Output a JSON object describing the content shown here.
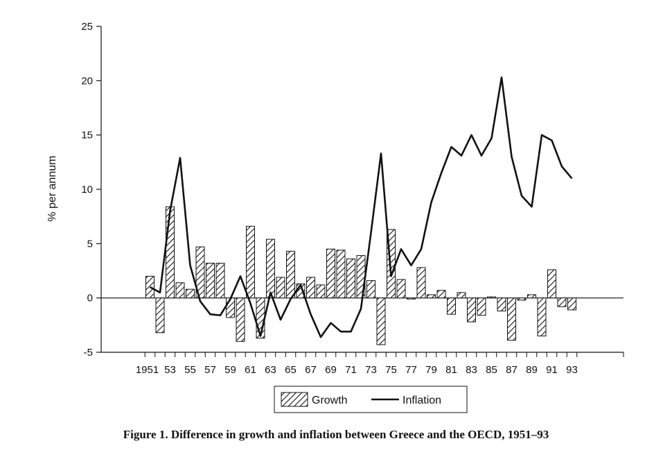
{
  "caption": "Figure 1. Difference in growth and inflation between Greece and the OECD, 1951–93",
  "chart_data": {
    "type": "bar+line",
    "ylabel": "% per annum",
    "ylim": [
      -5,
      25
    ],
    "yticks": [
      -5,
      0,
      5,
      10,
      15,
      20,
      25
    ],
    "x": [
      1951,
      1952,
      1953,
      1954,
      1955,
      1956,
      1957,
      1958,
      1959,
      1960,
      1961,
      1962,
      1963,
      1964,
      1965,
      1966,
      1967,
      1968,
      1969,
      1970,
      1971,
      1972,
      1973,
      1974,
      1975,
      1976,
      1977,
      1978,
      1979,
      1980,
      1981,
      1982,
      1983,
      1984,
      1985,
      1986,
      1987,
      1988,
      1989,
      1990,
      1991,
      1992,
      1993
    ],
    "xticklabels": [
      "1951",
      "53",
      "55",
      "57",
      "59",
      "61",
      "63",
      "65",
      "67",
      "69",
      "71",
      "73",
      "75",
      "77",
      "79",
      "81",
      "83",
      "85",
      "87",
      "89",
      "91",
      "93"
    ],
    "series": [
      {
        "name": "Growth",
        "kind": "bar",
        "pattern": "hatched",
        "values": [
          2.0,
          -3.2,
          8.4,
          1.4,
          0.8,
          4.7,
          3.2,
          3.2,
          -1.8,
          -4.0,
          6.6,
          -3.7,
          5.4,
          1.9,
          4.3,
          1.3,
          1.9,
          1.2,
          4.5,
          4.4,
          3.6,
          3.9,
          1.6,
          -4.3,
          6.3,
          1.7,
          -0.1,
          2.8,
          0.3,
          0.7,
          -1.5,
          0.5,
          -2.2,
          -1.6,
          0.1,
          -1.2,
          -3.9,
          -0.2,
          0.3,
          -3.5,
          2.6,
          -0.8,
          -1.1
        ]
      },
      {
        "name": "Inflation",
        "kind": "line",
        "values": [
          1.0,
          0.5,
          8.0,
          12.9,
          3.0,
          -0.3,
          -1.5,
          -1.6,
          -0.1,
          2.0,
          -0.5,
          -3.5,
          0.5,
          -2.0,
          -0.1,
          1.2,
          -1.5,
          -3.6,
          -2.3,
          -3.1,
          -3.1,
          -1.0,
          6.0,
          13.3,
          2.0,
          4.5,
          3.0,
          4.5,
          8.8,
          11.5,
          13.9,
          13.1,
          15.0,
          13.1,
          14.7,
          20.3,
          13.0,
          9.4,
          8.4,
          15.0,
          14.5,
          12.1,
          11.0
        ]
      }
    ],
    "legend": {
      "position": "bottom-center",
      "growth_label": "Growth",
      "inflation_label": "Inflation"
    }
  }
}
